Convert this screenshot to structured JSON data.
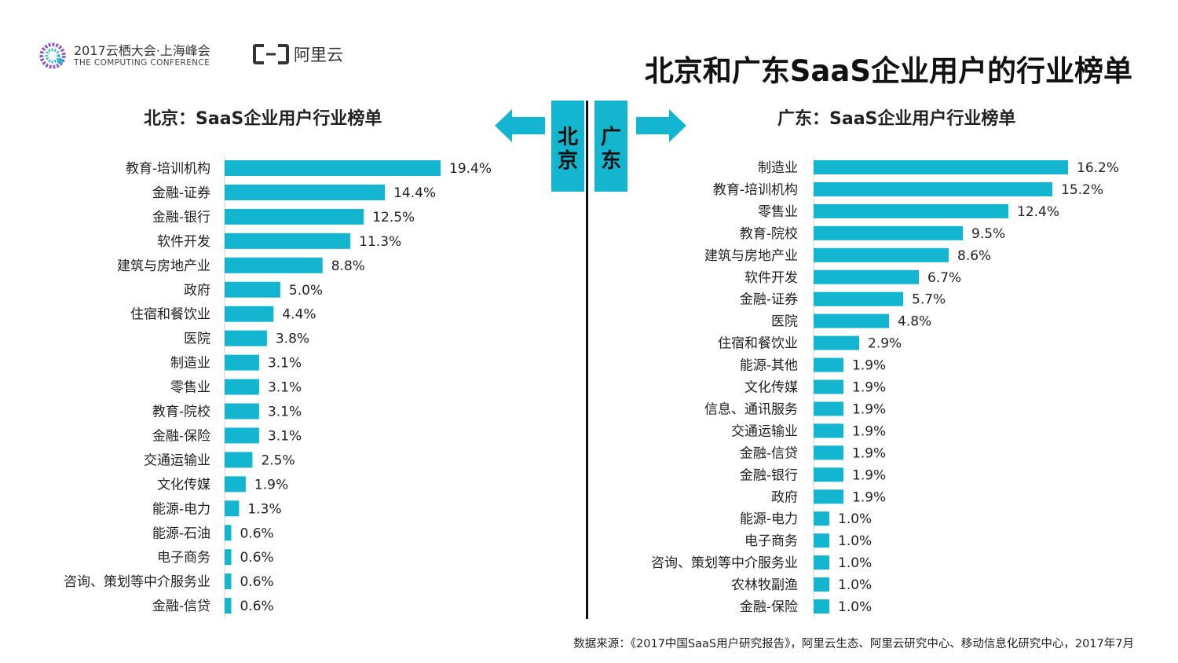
{
  "header": {
    "conference_title": "2017云栖大会·上海峰会",
    "conference_subtitle": "THE COMPUTING CONFERENCE",
    "brand": "阿里云",
    "page_title": "北京和广东SaaS企业用户的行业榜单"
  },
  "labels": {
    "beijing": "北京",
    "guangdong": "广东"
  },
  "colors": {
    "bar": "#14b5cf",
    "divider": "#111111"
  },
  "icons": [
    "computing-conference-logo-icon",
    "aliyun-logo-icon",
    "arrow-left-icon",
    "arrow-right-icon"
  ],
  "chart_data": [
    {
      "type": "bar",
      "orientation": "horizontal",
      "title": "北京：SaaS企业用户行业榜单",
      "categories": [
        "教育-培训机构",
        "金融-证券",
        "金融-银行",
        "软件开发",
        "建筑与房地产业",
        "政府",
        "住宿和餐饮业",
        "医院",
        "制造业",
        "零售业",
        "教育-院校",
        "金融-保险",
        "交通运输业",
        "文化传媒",
        "能源-电力",
        "能源-石油",
        "电子商务",
        "咨询、策划等中介服务业",
        "金融-信贷"
      ],
      "values": [
        19.4,
        14.4,
        12.5,
        11.3,
        8.8,
        5.0,
        4.4,
        3.8,
        3.1,
        3.1,
        3.1,
        3.1,
        2.5,
        1.9,
        1.3,
        0.6,
        0.6,
        0.6,
        0.6
      ],
      "value_labels": [
        "19.4%",
        "14.4%",
        "12.5%",
        "11.3%",
        "8.8%",
        "5.0%",
        "4.4%",
        "3.8%",
        "3.1%",
        "3.1%",
        "3.1%",
        "3.1%",
        "2.5%",
        "1.9%",
        "1.3%",
        "0.6%",
        "0.6%",
        "0.6%",
        "0.6%"
      ],
      "unit": "%",
      "xlim": [
        0,
        19.4
      ]
    },
    {
      "type": "bar",
      "orientation": "horizontal",
      "title": "广东：SaaS企业用户行业榜单",
      "categories": [
        "制造业",
        "教育-培训机构",
        "零售业",
        "教育-院校",
        "建筑与房地产业",
        "软件开发",
        "金融-证券",
        "医院",
        "住宿和餐饮业",
        "能源-其他",
        "文化传媒",
        "信息、通讯服务",
        "交通运输业",
        "金融-信贷",
        "金融-银行",
        "政府",
        "能源-电力",
        "电子商务",
        "咨询、策划等中介服务业",
        "农林牧副渔",
        "金融-保险"
      ],
      "values": [
        16.2,
        15.2,
        12.4,
        9.5,
        8.6,
        6.7,
        5.7,
        4.8,
        2.9,
        1.9,
        1.9,
        1.9,
        1.9,
        1.9,
        1.9,
        1.9,
        1.0,
        1.0,
        1.0,
        1.0,
        1.0
      ],
      "value_labels": [
        "16.2%",
        "15.2%",
        "12.4%",
        "9.5%",
        "8.6%",
        "6.7%",
        "5.7%",
        "4.8%",
        "2.9%",
        "1.9%",
        "1.9%",
        "1.9%",
        "1.9%",
        "1.9%",
        "1.9%",
        "1.9%",
        "1.0%",
        "1.0%",
        "1.0%",
        "1.0%",
        "1.0%"
      ],
      "unit": "%",
      "xlim": [
        0,
        16.2
      ]
    }
  ],
  "source": "数据来源：《2017中国SaaS用户研究报告》，阿里云生态、阿里云研究中心、移动信息化研究中心，2017年7月"
}
